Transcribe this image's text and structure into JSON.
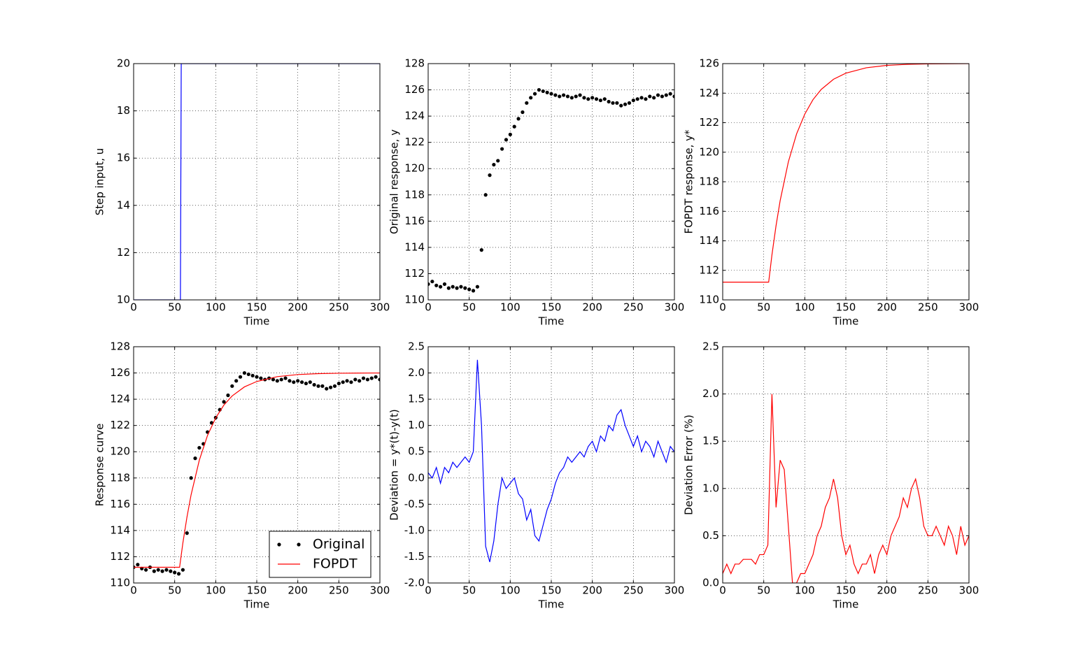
{
  "chart_data": [
    {
      "type": "line",
      "xlabel": "Time",
      "ylabel": "Step input, u",
      "color": "#0000ff",
      "x": [
        0,
        57,
        58,
        300
      ],
      "values": [
        10,
        10,
        20,
        20
      ],
      "xlim": [
        0,
        300
      ],
      "ylim": [
        10,
        20
      ],
      "xticks": [
        0,
        50,
        100,
        150,
        200,
        250,
        300
      ],
      "yticks": [
        10,
        12,
        14,
        16,
        18,
        20
      ],
      "grid": true
    },
    {
      "type": "scatter",
      "xlabel": "Time",
      "ylabel": "Original response, y",
      "color": "#000000",
      "x": [
        0,
        5,
        10,
        15,
        20,
        25,
        30,
        35,
        40,
        45,
        50,
        55,
        60,
        65,
        70,
        75,
        80,
        85,
        90,
        95,
        100,
        105,
        110,
        115,
        120,
        125,
        130,
        135,
        140,
        145,
        150,
        155,
        160,
        165,
        170,
        175,
        180,
        185,
        190,
        195,
        200,
        205,
        210,
        215,
        220,
        225,
        230,
        235,
        240,
        245,
        250,
        255,
        260,
        265,
        270,
        275,
        280,
        285,
        290,
        295,
        300
      ],
      "values": [
        111.2,
        111.4,
        111.1,
        111.0,
        111.2,
        110.9,
        111.0,
        110.9,
        111.0,
        110.9,
        110.8,
        110.7,
        111.0,
        113.8,
        118.0,
        119.5,
        120.3,
        120.6,
        121.5,
        122.2,
        122.6,
        123.2,
        123.8,
        124.3,
        125.0,
        125.4,
        125.7,
        126.0,
        125.9,
        125.8,
        125.7,
        125.6,
        125.5,
        125.6,
        125.5,
        125.4,
        125.5,
        125.6,
        125.4,
        125.3,
        125.4,
        125.3,
        125.2,
        125.3,
        125.1,
        125.0,
        125.0,
        124.8,
        124.9,
        125.0,
        125.2,
        125.3,
        125.4,
        125.3,
        125.5,
        125.4,
        125.6,
        125.5,
        125.6,
        125.7,
        125.5
      ],
      "xlim": [
        0,
        300
      ],
      "ylim": [
        110,
        128
      ],
      "xticks": [
        0,
        50,
        100,
        150,
        200,
        250,
        300
      ],
      "yticks": [
        110,
        112,
        114,
        116,
        118,
        120,
        122,
        124,
        126,
        128
      ],
      "grid": true
    },
    {
      "type": "line",
      "xlabel": "Time",
      "ylabel": "FOPDT response, y*",
      "color": "#ff0000",
      "x": [
        0,
        56,
        60,
        65,
        70,
        80,
        90,
        100,
        110,
        120,
        135,
        150,
        175,
        200,
        225,
        250,
        300
      ],
      "values": [
        111.2,
        111.2,
        113.05,
        115.03,
        116.72,
        119.35,
        121.24,
        122.58,
        123.56,
        124.25,
        124.94,
        125.35,
        125.72,
        125.88,
        125.95,
        125.98,
        126.0
      ],
      "xlim": [
        0,
        300
      ],
      "ylim": [
        110,
        126
      ],
      "xticks": [
        0,
        50,
        100,
        150,
        200,
        250,
        300
      ],
      "yticks": [
        110,
        112,
        114,
        116,
        118,
        120,
        122,
        124,
        126
      ],
      "grid": true
    },
    {
      "type": "combo",
      "xlabel": "Time",
      "ylabel": "Response curve",
      "legend": "lower right",
      "series": [
        {
          "name": "Original",
          "type": "scatter",
          "color": "#000000",
          "x": [
            0,
            5,
            10,
            15,
            20,
            25,
            30,
            35,
            40,
            45,
            50,
            55,
            60,
            65,
            70,
            75,
            80,
            85,
            90,
            95,
            100,
            105,
            110,
            115,
            120,
            125,
            130,
            135,
            140,
            145,
            150,
            155,
            160,
            165,
            170,
            175,
            180,
            185,
            190,
            195,
            200,
            205,
            210,
            215,
            220,
            225,
            230,
            235,
            240,
            245,
            250,
            255,
            260,
            265,
            270,
            275,
            280,
            285,
            290,
            295,
            300
          ],
          "values": [
            111.2,
            111.4,
            111.1,
            111.0,
            111.2,
            110.9,
            111.0,
            110.9,
            111.0,
            110.9,
            110.8,
            110.7,
            111.0,
            113.8,
            118.0,
            119.5,
            120.3,
            120.6,
            121.5,
            122.2,
            122.6,
            123.2,
            123.8,
            124.3,
            125.0,
            125.4,
            125.7,
            126.0,
            125.9,
            125.8,
            125.7,
            125.6,
            125.5,
            125.6,
            125.5,
            125.4,
            125.5,
            125.6,
            125.4,
            125.3,
            125.4,
            125.3,
            125.2,
            125.3,
            125.1,
            125.0,
            125.0,
            124.8,
            124.9,
            125.0,
            125.2,
            125.3,
            125.4,
            125.3,
            125.5,
            125.4,
            125.6,
            125.5,
            125.6,
            125.7,
            125.5
          ]
        },
        {
          "name": "FOPDT",
          "type": "line",
          "color": "#ff0000",
          "x": [
            0,
            56,
            60,
            65,
            70,
            80,
            90,
            100,
            110,
            120,
            135,
            150,
            175,
            200,
            225,
            250,
            300
          ],
          "values": [
            111.2,
            111.2,
            113.05,
            115.03,
            116.72,
            119.35,
            121.24,
            122.58,
            123.56,
            124.25,
            124.94,
            125.35,
            125.72,
            125.88,
            125.95,
            125.98,
            126.0
          ]
        }
      ],
      "xlim": [
        0,
        300
      ],
      "ylim": [
        110,
        128
      ],
      "xticks": [
        0,
        50,
        100,
        150,
        200,
        250,
        300
      ],
      "yticks": [
        110,
        112,
        114,
        116,
        118,
        120,
        122,
        124,
        126,
        128
      ],
      "grid": true
    },
    {
      "type": "line",
      "xlabel": "Time",
      "ylabel": "Deviation = y*(t)-y(t)",
      "color": "#0000ff",
      "x": [
        0,
        5,
        10,
        15,
        20,
        25,
        30,
        35,
        40,
        45,
        50,
        55,
        60,
        65,
        70,
        75,
        80,
        85,
        90,
        95,
        100,
        105,
        110,
        115,
        120,
        125,
        130,
        135,
        140,
        145,
        150,
        155,
        160,
        165,
        170,
        175,
        180,
        185,
        190,
        195,
        200,
        205,
        210,
        215,
        220,
        225,
        230,
        235,
        240,
        245,
        250,
        255,
        260,
        265,
        270,
        275,
        280,
        285,
        290,
        295,
        300
      ],
      "values": [
        0.1,
        0.0,
        0.2,
        -0.1,
        0.2,
        0.1,
        0.3,
        0.2,
        0.3,
        0.4,
        0.3,
        0.5,
        2.25,
        1.0,
        -1.3,
        -1.6,
        -1.2,
        -0.5,
        0.0,
        -0.2,
        -0.1,
        0.0,
        -0.3,
        -0.4,
        -0.8,
        -0.6,
        -1.1,
        -1.2,
        -0.9,
        -0.6,
        -0.4,
        -0.1,
        0.1,
        0.2,
        0.4,
        0.3,
        0.4,
        0.5,
        0.4,
        0.6,
        0.7,
        0.5,
        0.8,
        0.7,
        1.0,
        0.9,
        1.2,
        1.3,
        1.0,
        0.8,
        0.6,
        0.8,
        0.5,
        0.7,
        0.6,
        0.4,
        0.7,
        0.5,
        0.3,
        0.6,
        0.5
      ],
      "xlim": [
        0,
        300
      ],
      "ylim": [
        -2,
        2.5
      ],
      "xticks": [
        0,
        50,
        100,
        150,
        200,
        250,
        300
      ],
      "yticks": [
        {
          "value": -2,
          "label": "-2.0"
        },
        -1.5,
        {
          "value": -1,
          "label": "-1.0"
        },
        -0.5,
        {
          "value": 0,
          "label": "0.0"
        },
        0.5,
        {
          "value": 1,
          "label": "1.0"
        },
        1.5,
        {
          "value": 2,
          "label": "2.0"
        },
        2.5
      ],
      "grid": true
    },
    {
      "type": "line",
      "xlabel": "Time",
      "ylabel": "Deviation Error (%)",
      "color": "#ff0000",
      "x": [
        0,
        5,
        10,
        15,
        20,
        25,
        30,
        35,
        40,
        45,
        50,
        55,
        60,
        65,
        70,
        75,
        80,
        85,
        90,
        95,
        100,
        105,
        110,
        115,
        120,
        125,
        130,
        135,
        140,
        145,
        150,
        155,
        160,
        165,
        170,
        175,
        180,
        185,
        190,
        195,
        200,
        205,
        210,
        215,
        220,
        225,
        230,
        235,
        240,
        245,
        250,
        255,
        260,
        265,
        270,
        275,
        280,
        285,
        290,
        295,
        300
      ],
      "values": [
        0.1,
        0.2,
        0.1,
        0.2,
        0.2,
        0.25,
        0.25,
        0.25,
        0.2,
        0.3,
        0.3,
        0.4,
        2.0,
        0.8,
        1.3,
        1.2,
        0.6,
        0.0,
        0.0,
        0.1,
        0.1,
        0.2,
        0.3,
        0.5,
        0.6,
        0.8,
        0.9,
        1.1,
        0.9,
        0.5,
        0.3,
        0.4,
        0.2,
        0.1,
        0.2,
        0.2,
        0.3,
        0.1,
        0.3,
        0.4,
        0.3,
        0.5,
        0.6,
        0.7,
        0.9,
        0.8,
        1.0,
        1.1,
        0.9,
        0.6,
        0.5,
        0.5,
        0.6,
        0.5,
        0.4,
        0.6,
        0.5,
        0.3,
        0.6,
        0.4,
        0.5
      ],
      "xlim": [
        0,
        300
      ],
      "ylim": [
        0,
        2.5
      ],
      "xticks": [
        0,
        50,
        100,
        150,
        200,
        250,
        300
      ],
      "yticks": [
        {
          "value": 0,
          "label": "0.0"
        },
        0.5,
        {
          "value": 1,
          "label": "1.0"
        },
        1.5,
        {
          "value": 2,
          "label": "2.0"
        },
        2.5
      ],
      "grid": true
    }
  ]
}
